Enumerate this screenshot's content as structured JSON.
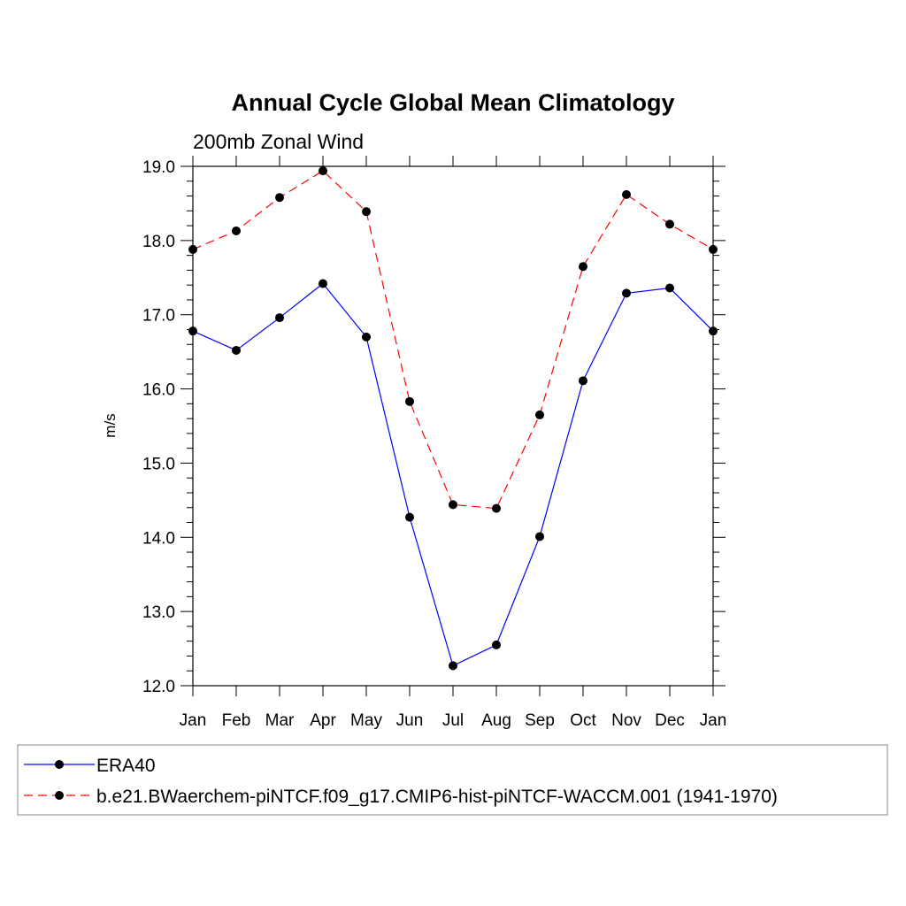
{
  "chart_data": {
    "type": "line",
    "title": "Annual Cycle Global Mean Climatology",
    "subtitle": "200mb Zonal Wind",
    "xlabel": "",
    "ylabel": "m/s",
    "categories": [
      "Jan",
      "Feb",
      "Mar",
      "Apr",
      "May",
      "Jun",
      "Jul",
      "Aug",
      "Sep",
      "Oct",
      "Nov",
      "Dec",
      "Jan"
    ],
    "ylim": [
      12.0,
      19.0
    ],
    "yticks": [
      "12.0",
      "13.0",
      "14.0",
      "15.0",
      "16.0",
      "17.0",
      "18.0",
      "19.0"
    ],
    "grid": false,
    "legend_position": "bottom",
    "series": [
      {
        "name": "ERA40",
        "color": "#0000ff",
        "dash": "solid",
        "values": [
          16.78,
          16.52,
          16.96,
          17.42,
          16.7,
          14.27,
          12.27,
          12.55,
          14.01,
          16.11,
          17.29,
          17.36,
          16.78
        ]
      },
      {
        "name": "b.e21.BWaerchem-piNTCF.f09_g17.CMIP6-hist-piNTCF-WACCM.001 (1941-1970)",
        "color": "#ff0000",
        "dash": "dashed",
        "values": [
          17.88,
          18.13,
          18.58,
          18.94,
          18.39,
          15.83,
          14.44,
          14.39,
          15.65,
          17.65,
          18.62,
          18.22,
          17.88
        ]
      }
    ]
  }
}
